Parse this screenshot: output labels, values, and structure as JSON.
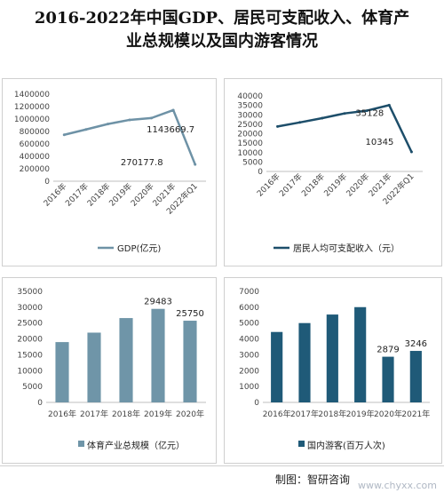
{
  "page": {
    "title_line1": "2016-2022年中国GDP、居民可支配收入、体育产",
    "title_line2": "业总规模以及国内游客情况",
    "source": "制图：智研咨询",
    "watermark": "www.chyxx.com"
  },
  "chart_data": [
    {
      "type": "line",
      "categories": [
        "2016年",
        "2017年",
        "2018年",
        "2019年",
        "2020年",
        "2021年",
        "2022年Q1"
      ],
      "series": [
        {
          "name": "GDP(亿元)",
          "values": [
            746395,
            832036,
            919281,
            986515,
            1015986,
            1143669.7,
            270177.8
          ],
          "color": "#6e92a6"
        }
      ],
      "ylim": [
        0,
        1400000
      ],
      "yticks": [
        "0",
        "200000",
        "400000",
        "600000",
        "800000",
        "1000000",
        "1200000",
        "1400000"
      ],
      "data_labels": [
        "",
        "",
        "",
        "",
        "",
        "1143669.7",
        "270177.8"
      ],
      "legend": "bottom"
    },
    {
      "type": "line",
      "categories": [
        "2016年",
        "2017年",
        "2018年",
        "2019年",
        "2020年",
        "2021年",
        "2022年Q1"
      ],
      "series": [
        {
          "name": "居民人均可支配收入（元）",
          "values": [
            23821,
            25974,
            28228,
            30733,
            32189,
            35128,
            10345
          ],
          "color": "#1d4e6a"
        }
      ],
      "ylim": [
        0,
        40000
      ],
      "yticks": [
        "0",
        "5000",
        "10000",
        "15000",
        "20000",
        "25000",
        "30000",
        "35000",
        "40000"
      ],
      "data_labels": [
        "",
        "",
        "",
        "",
        "",
        "35128",
        "10345"
      ],
      "legend": "bottom"
    },
    {
      "type": "bar",
      "categories": [
        "2016年",
        "2017年",
        "2018年",
        "2019年",
        "2020年"
      ],
      "series": [
        {
          "name": "体育产业总规模（亿元）",
          "values": [
            19011,
            21988,
            26579,
            29483,
            25750
          ],
          "color": "#6f95a8"
        }
      ],
      "ylim": [
        0,
        35000
      ],
      "yticks": [
        "0",
        "5000",
        "10000",
        "15000",
        "20000",
        "25000",
        "30000",
        "35000"
      ],
      "data_labels": [
        "",
        "",
        "",
        "29483",
        "25750"
      ],
      "legend": "bottom"
    },
    {
      "type": "bar",
      "categories": [
        "2016年",
        "2017年",
        "2018年",
        "2019年",
        "2020年",
        "2021年"
      ],
      "series": [
        {
          "name": "国内游客(百万人次)",
          "values": [
            4440,
            5001,
            5539,
            6006,
            2879,
            3246
          ],
          "color": "#1f5a78"
        }
      ],
      "ylim": [
        0,
        7000
      ],
      "yticks": [
        "0",
        "1000",
        "2000",
        "3000",
        "4000",
        "5000",
        "6000",
        "7000"
      ],
      "data_labels": [
        "",
        "",
        "",
        "",
        "2879",
        "3246"
      ],
      "legend": "bottom"
    }
  ]
}
